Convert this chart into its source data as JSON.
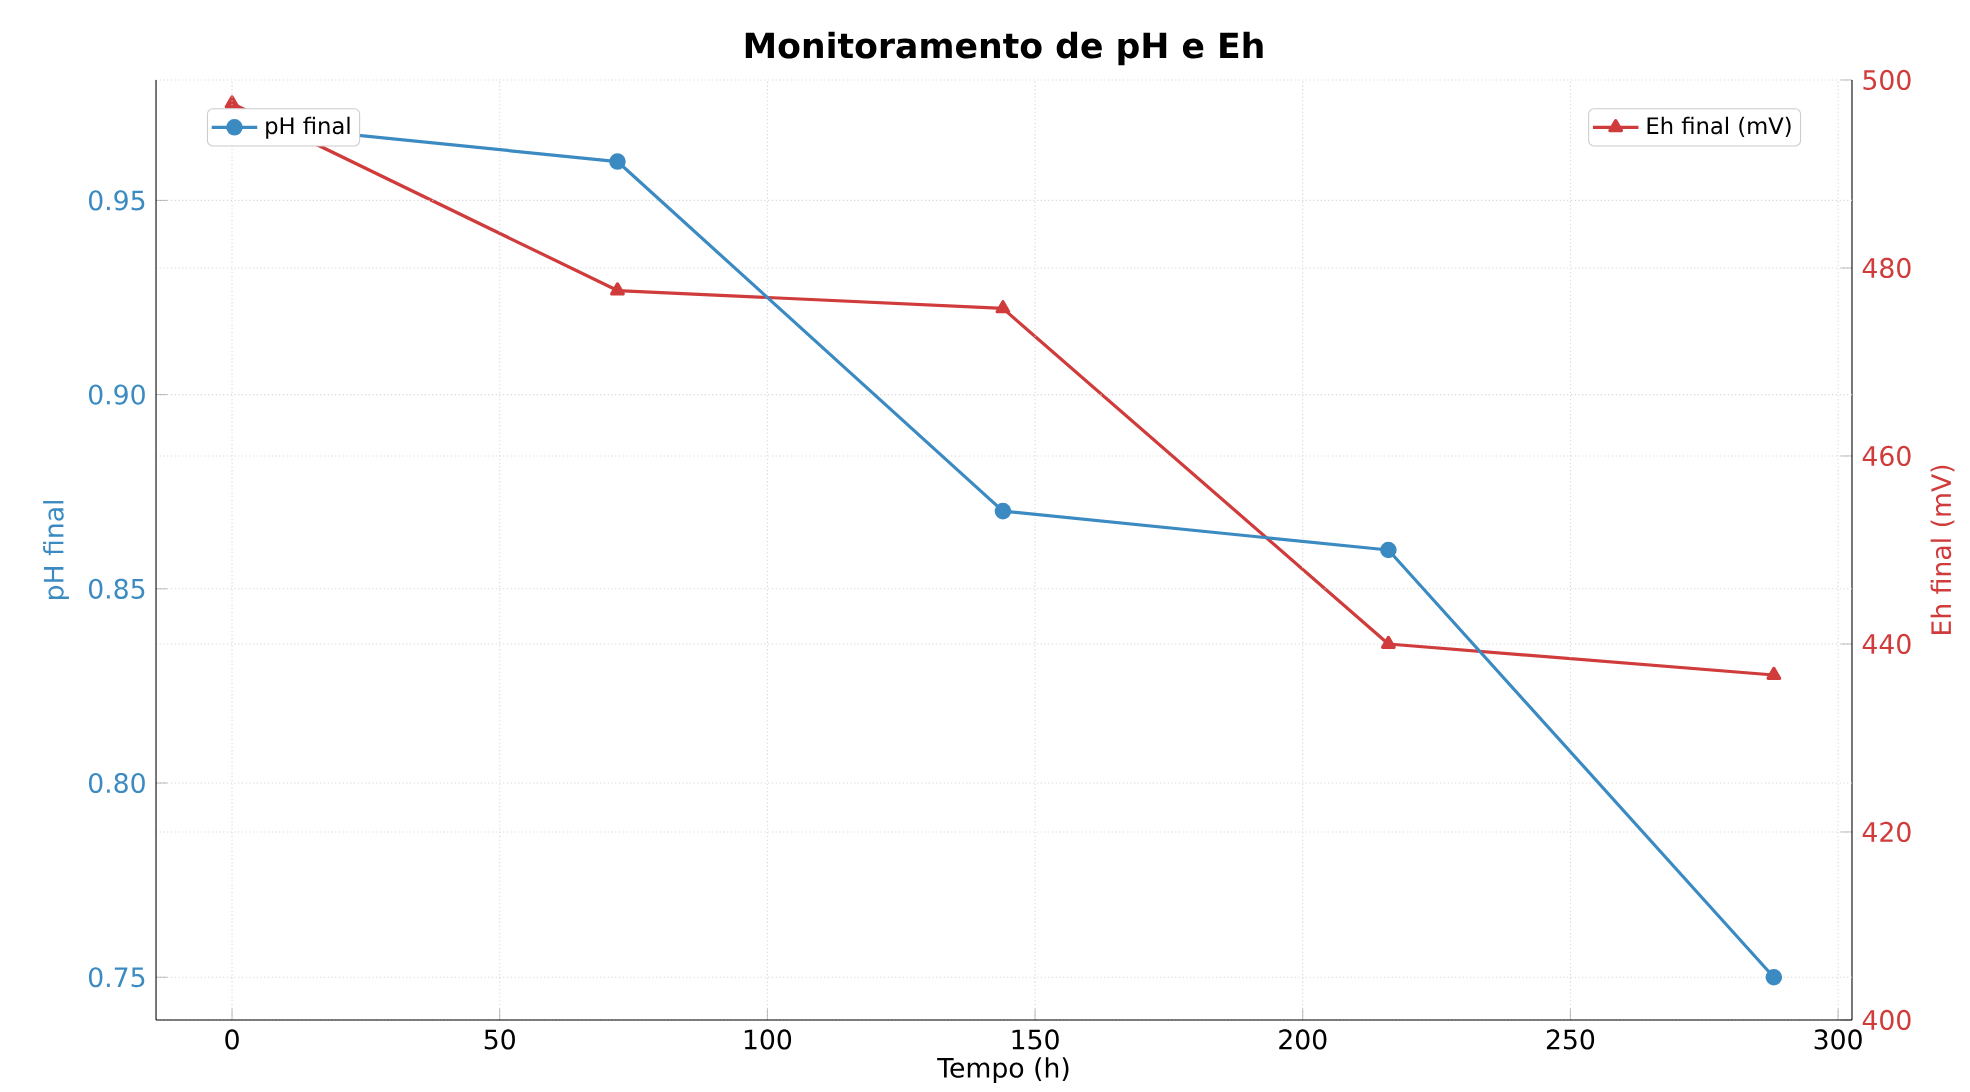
{
  "chart_data": {
    "type": "line",
    "title": "Monitoramento de pH e Eh",
    "xlabel": "Tempo (h)",
    "ylabel": "pH final",
    "y2label": "Eh final (mV)",
    "x": [
      0,
      72,
      144,
      216,
      288
    ],
    "series": [
      {
        "name": "pH final",
        "color": "#3b8bc2",
        "values": [
          0.97,
          0.96,
          0.87,
          0.86,
          0.75
        ],
        "marker": "circle"
      },
      {
        "name": "Eh final (mV)",
        "color": "#d03b3b",
        "values": [
          497.5,
          477.6,
          475.7,
          440,
          436.7
        ],
        "axis": "y2",
        "marker": "triangle"
      }
    ],
    "xlim": [
      -14.2,
      302.6
    ],
    "ylim": [
      0.739,
      0.981
    ],
    "y2lim": [
      400,
      500
    ],
    "xticks": [
      0,
      50,
      100,
      150,
      200,
      250,
      300
    ],
    "yticks": [
      0.75,
      {
        "value": 0.8,
        "label": "0.80"
      },
      0.85,
      {
        "value": 0.9,
        "label": "0.90"
      },
      0.95
    ],
    "y2ticks": [
      400,
      420,
      440,
      460,
      480,
      500
    ],
    "grid": true,
    "legend": "top",
    "line_style": "solid"
  }
}
